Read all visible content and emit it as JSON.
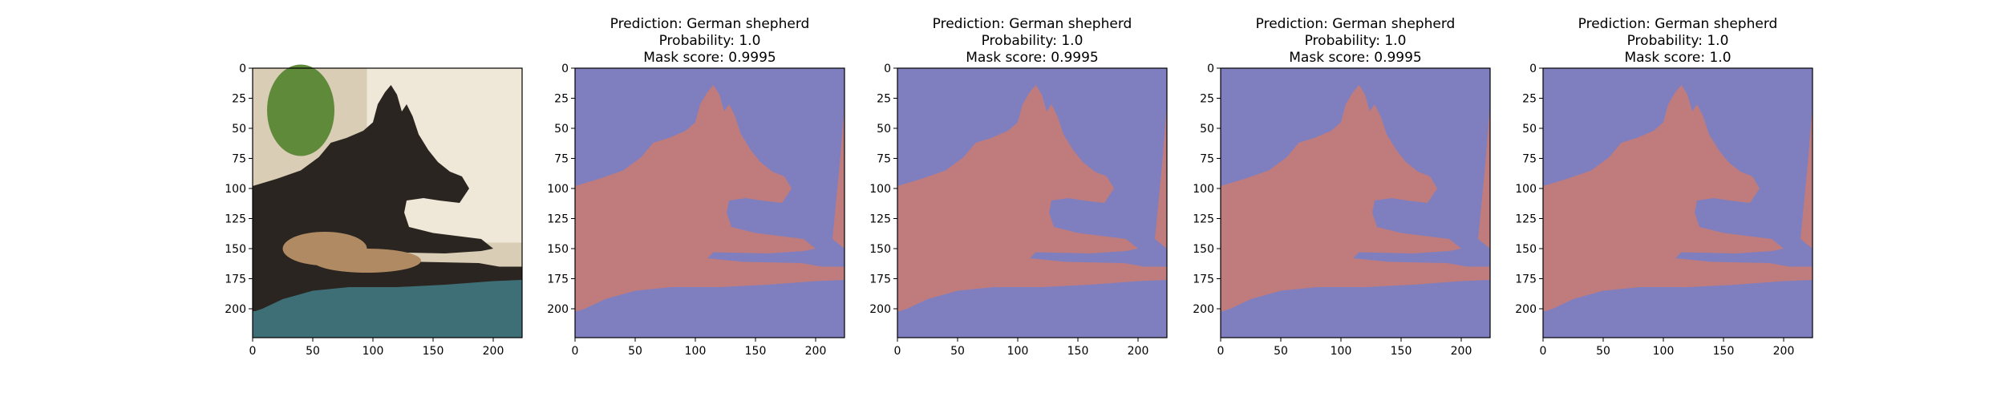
{
  "colors": {
    "dog_mask": "#c07c7c",
    "background_mask": "#7f7fbf",
    "photo_wall": "#d9cdb5",
    "photo_window": "#efe8d8",
    "photo_blanket": "#3f6f76",
    "photo_dog_dark": "#2a2520",
    "photo_dog_tan": "#b08a62",
    "photo_plant": "#5f8a3a"
  },
  "chart_data": [
    {
      "type": "image",
      "title_lines": [],
      "xlim": [
        0,
        224
      ],
      "ylim": [
        224,
        0
      ],
      "x_ticks": [
        0,
        50,
        100,
        150,
        200
      ],
      "y_ticks": [
        0,
        25,
        50,
        75,
        100,
        125,
        150,
        175,
        200
      ],
      "content": "photo"
    },
    {
      "type": "image",
      "title_lines": [
        "Prediction: German shepherd",
        "Probability: 1.0",
        "Mask score: 0.9995"
      ],
      "prediction": "German shepherd",
      "probability": 1.0,
      "mask_score": 0.9995,
      "xlim": [
        0,
        224
      ],
      "ylim": [
        224,
        0
      ],
      "x_ticks": [
        0,
        50,
        100,
        150,
        200
      ],
      "y_ticks": [
        0,
        25,
        50,
        75,
        100,
        125,
        150,
        175,
        200
      ],
      "content": "mask"
    },
    {
      "type": "image",
      "title_lines": [
        "Prediction: German shepherd",
        "Probability: 1.0",
        "Mask score: 0.9995"
      ],
      "prediction": "German shepherd",
      "probability": 1.0,
      "mask_score": 0.9995,
      "xlim": [
        0,
        224
      ],
      "ylim": [
        224,
        0
      ],
      "x_ticks": [
        0,
        50,
        100,
        150,
        200
      ],
      "y_ticks": [
        0,
        25,
        50,
        75,
        100,
        125,
        150,
        175,
        200
      ],
      "content": "mask"
    },
    {
      "type": "image",
      "title_lines": [
        "Prediction: German shepherd",
        "Probability: 1.0",
        "Mask score: 0.9995"
      ],
      "prediction": "German shepherd",
      "probability": 1.0,
      "mask_score": 0.9995,
      "xlim": [
        0,
        224
      ],
      "ylim": [
        224,
        0
      ],
      "x_ticks": [
        0,
        50,
        100,
        150,
        200
      ],
      "y_ticks": [
        0,
        25,
        50,
        75,
        100,
        125,
        150,
        175,
        200
      ],
      "content": "mask"
    },
    {
      "type": "image",
      "title_lines": [
        "Prediction: German shepherd",
        "Probability: 1.0",
        "Mask score: 1.0"
      ],
      "prediction": "German shepherd",
      "probability": 1.0,
      "mask_score": 1.0,
      "xlim": [
        0,
        224
      ],
      "ylim": [
        224,
        0
      ],
      "x_ticks": [
        0,
        50,
        100,
        150,
        200
      ],
      "y_ticks": [
        0,
        25,
        50,
        75,
        100,
        125,
        150,
        175,
        200
      ],
      "content": "mask"
    }
  ]
}
